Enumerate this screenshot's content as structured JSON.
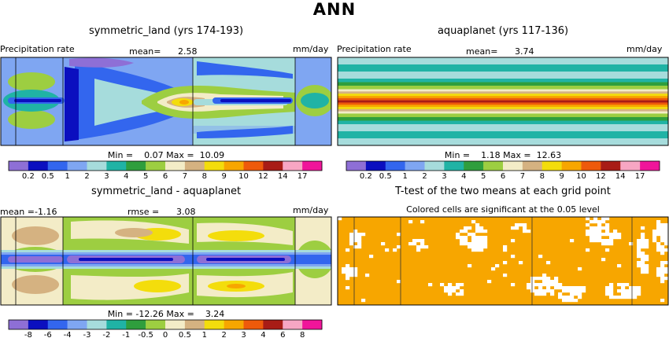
{
  "figure": {
    "title": "ANN"
  },
  "panels": {
    "p1": {
      "title": "symmetric_land (yrs 174-193)",
      "variable": "Precipitation rate",
      "mean_label": "mean=",
      "mean": "2.58",
      "units": "mm/day",
      "stats": "Min =    0.07 Max =  10.09"
    },
    "p2": {
      "title": "aquaplanet (yrs 117-136)",
      "variable": "Precipitation rate",
      "mean_label": "mean=",
      "mean": "3.74",
      "units": "mm/day",
      "stats": "Min =    1.18 Max =  12.63"
    },
    "p3": {
      "title": "symmetric_land - aquaplanet",
      "mean_label": "mean =",
      "mean": "-1.16",
      "rmse_label": "rmse =",
      "rmse": "3.08",
      "units": "mm/day",
      "stats": "Min = -12.26 Max =    3.24"
    },
    "p4": {
      "title": "T-test of the two means at each grid point",
      "subtitle": "Colored cells are significant at the 0.05 level"
    }
  },
  "colorbars": {
    "precip": {
      "colors": [
        "#8e6fd6",
        "#0b0fbf",
        "#3366ee",
        "#7fa6f2",
        "#a6dcdc",
        "#20b3a5",
        "#2f9e3d",
        "#9dce41",
        "#f3ecc7",
        "#d5b281",
        "#f3dd0c",
        "#f7a600",
        "#ee5a0b",
        "#a81c16",
        "#f7a6c3",
        "#f0159a"
      ],
      "ticks": [
        "0.2",
        "0.5",
        "1",
        "2",
        "3",
        "4",
        "5",
        "6",
        "7",
        "8",
        "9",
        "10",
        "12",
        "14",
        "17"
      ]
    },
    "diff": {
      "colors": [
        "#8e6fd6",
        "#0b0fbf",
        "#3366ee",
        "#7fa6f2",
        "#a6dcdc",
        "#20b3a5",
        "#2f9e3d",
        "#9dce41",
        "#f3ecc7",
        "#d5b281",
        "#f3dd0c",
        "#f7a600",
        "#ee5a0b",
        "#a81c16",
        "#f7a6c3",
        "#f0159a"
      ],
      "ticks": [
        "-8",
        "-6",
        "-4",
        "-3",
        "-2",
        "-1",
        "-0.5",
        "0",
        "0.5",
        "1",
        "2",
        "3",
        "4",
        "6",
        "8"
      ]
    }
  },
  "chart_data": [
    {
      "type": "heatmap",
      "title": "symmetric_land (yrs 174-193)",
      "field": "Precipitation rate",
      "units": "mm/day",
      "mean": 2.58,
      "min": 0.07,
      "max": 10.09,
      "contour_levels": [
        0.2,
        0.5,
        1,
        2,
        3,
        4,
        5,
        6,
        7,
        8,
        9,
        10,
        12,
        14,
        17
      ]
    },
    {
      "type": "heatmap",
      "title": "aquaplanet (yrs 117-136)",
      "field": "Precipitation rate",
      "units": "mm/day",
      "mean": 3.74,
      "min": 1.18,
      "max": 12.63,
      "contour_levels": [
        0.2,
        0.5,
        1,
        2,
        3,
        4,
        5,
        6,
        7,
        8,
        9,
        10,
        12,
        14,
        17
      ],
      "zonal_profile": {
        "description": "zonally uniform bands, peak along the equator",
        "band_levels_north_to_south": [
          2,
          3,
          2,
          3,
          4,
          5,
          6,
          7,
          8,
          9,
          10,
          12,
          10,
          9,
          8,
          7,
          6,
          5,
          4,
          3,
          2,
          3,
          2
        ]
      }
    },
    {
      "type": "heatmap",
      "title": "symmetric_land - aquaplanet",
      "units": "mm/day",
      "mean": -1.16,
      "rmse": 3.08,
      "min": -12.26,
      "max": 3.24,
      "contour_levels": [
        -8,
        -6,
        -4,
        -3,
        -2,
        -1,
        -0.5,
        0,
        0.5,
        1,
        2,
        3,
        4,
        6,
        8
      ]
    },
    {
      "type": "heatmap",
      "title": "T-test of the two means at each grid point",
      "note": "Colored cells are significant at the 0.05 level",
      "significant_color": "#f7a600"
    }
  ]
}
